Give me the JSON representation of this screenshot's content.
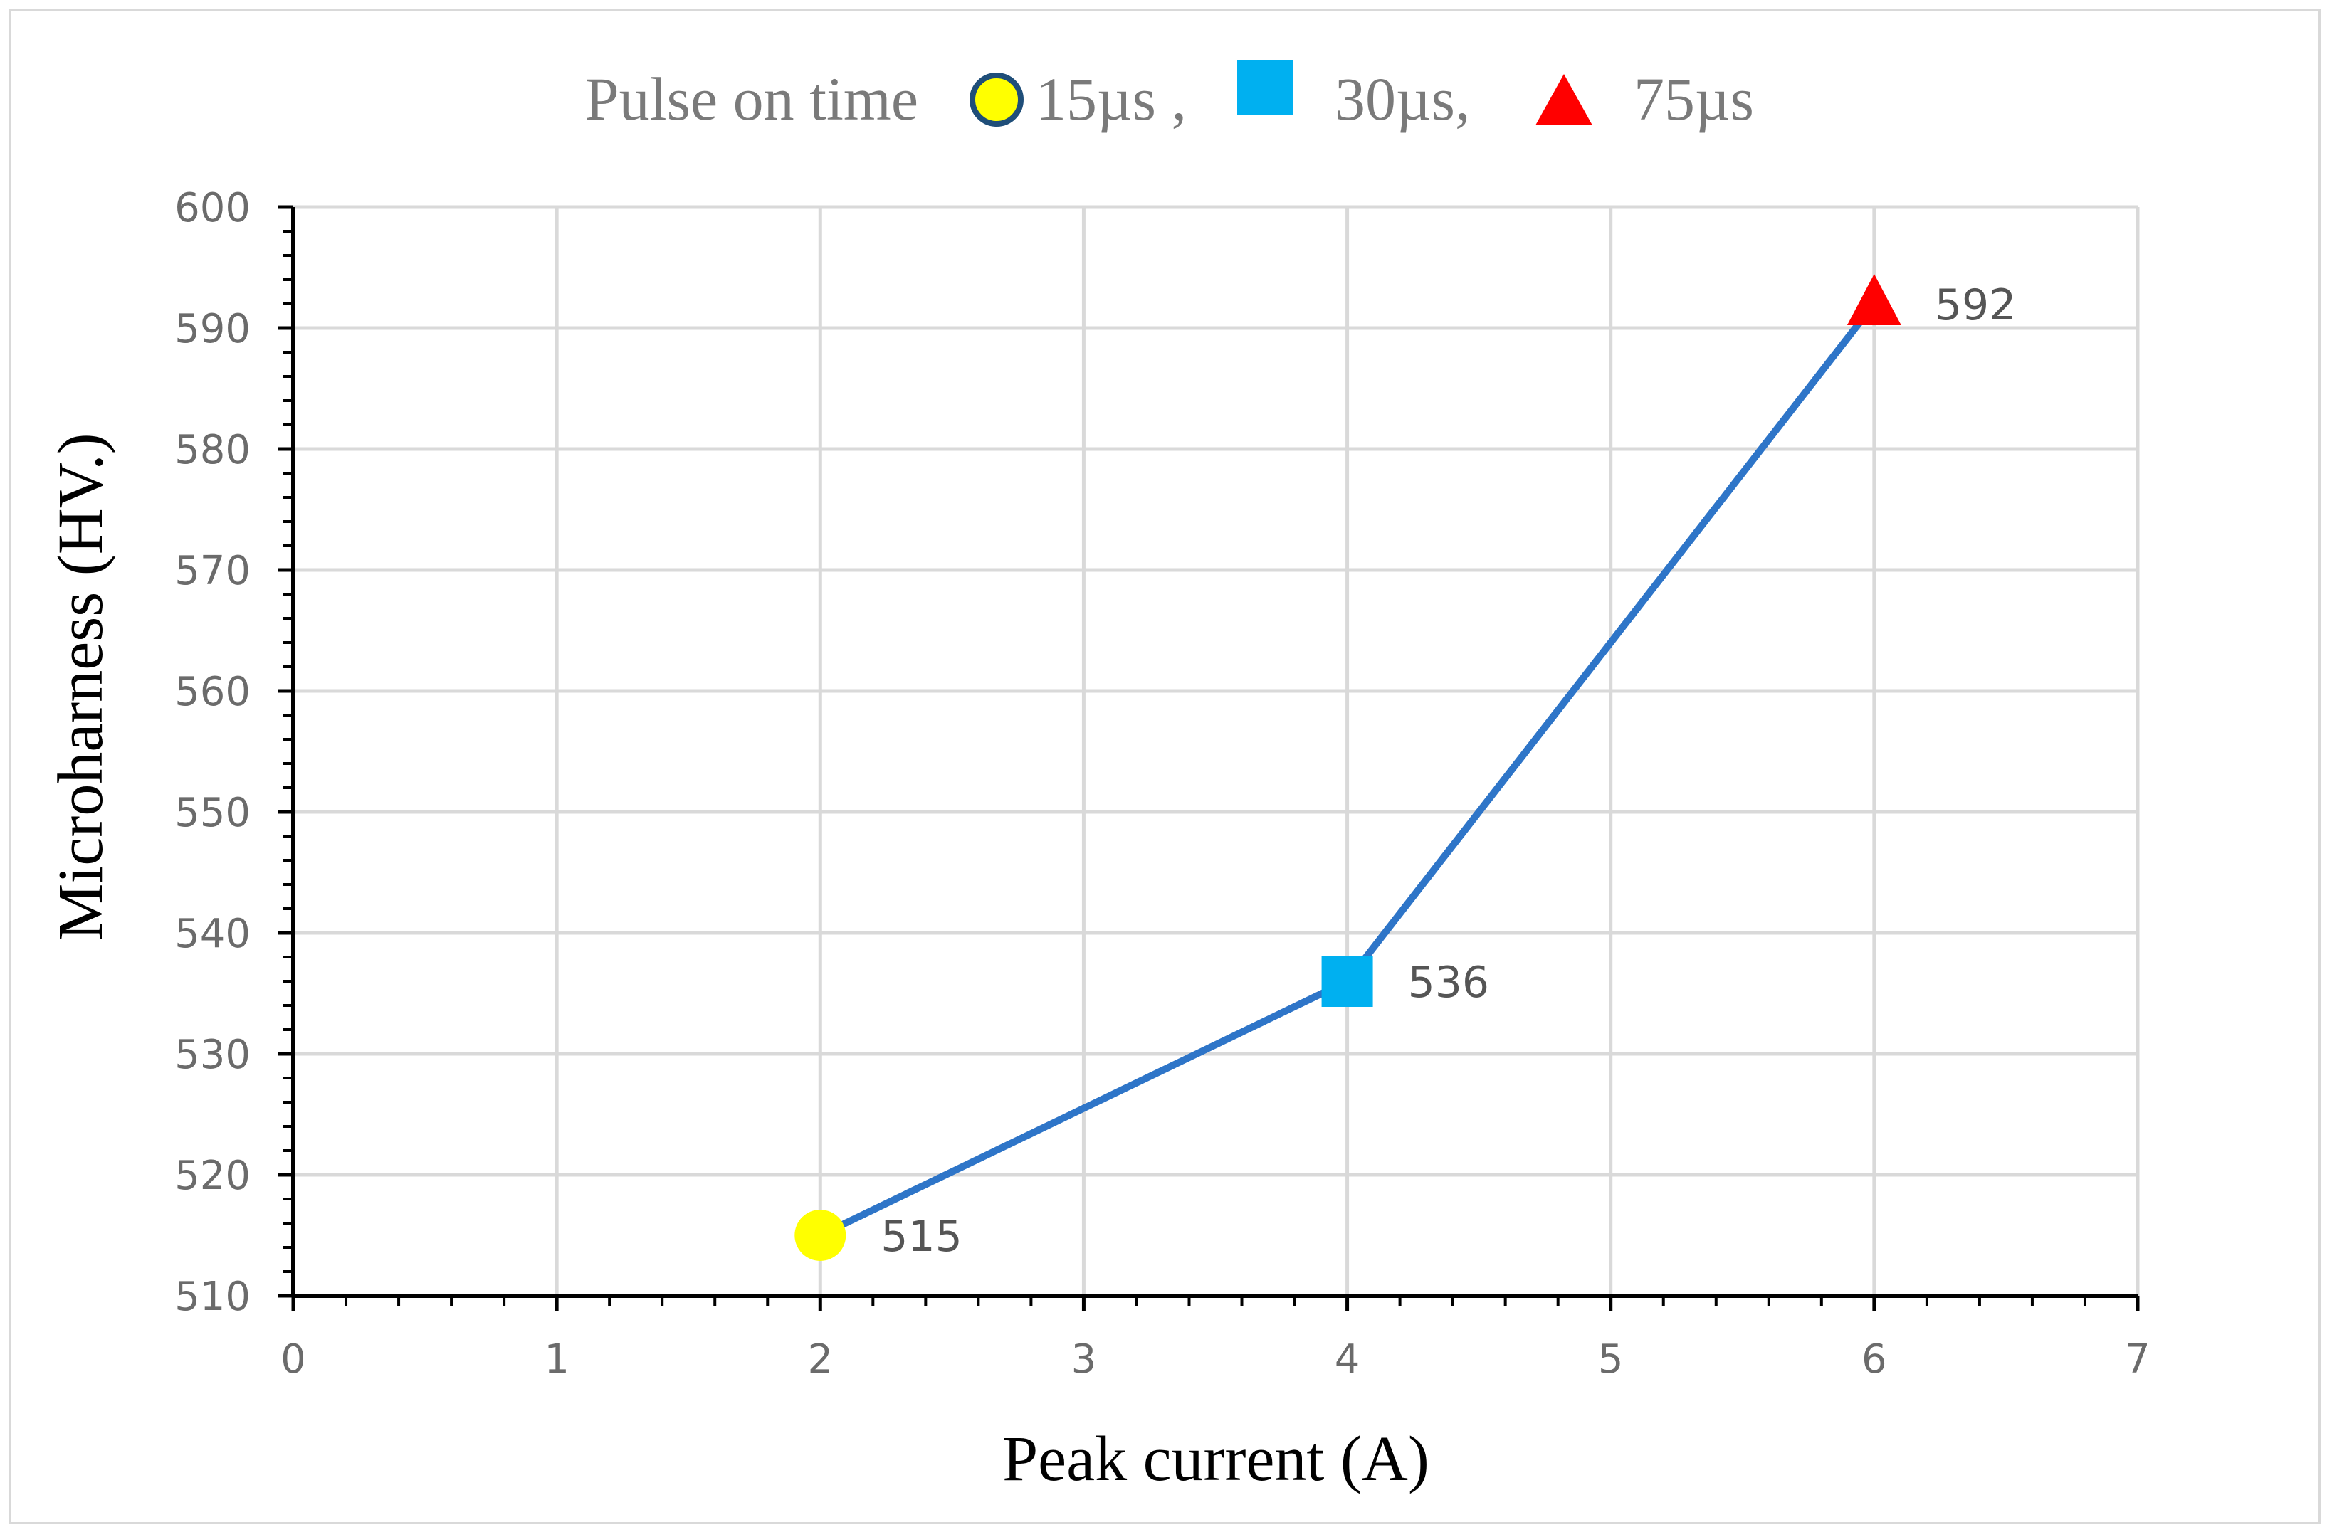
{
  "chart_data": {
    "type": "line",
    "legend_title": "Pulse on time",
    "legend_placement": "top-center",
    "legend": [
      {
        "label": "15µs ,",
        "marker": "circle",
        "color": "#ffff00",
        "stroke": "#1f4e79"
      },
      {
        "label": "30µs,",
        "marker": "square",
        "color": "#00b0f0"
      },
      {
        "label": "75µs",
        "marker": "triangle",
        "color": "#ff0000"
      }
    ],
    "xlabel": "Peak current (A)",
    "ylabel": "Microharness (HV.)",
    "xlim": [
      0,
      7
    ],
    "ylim": [
      510,
      600
    ],
    "x_ticks": [
      "0",
      "1",
      "2",
      "3",
      "4",
      "5",
      "6",
      "7"
    ],
    "y_ticks": [
      "510",
      "520",
      "530",
      "540",
      "550",
      "560",
      "570",
      "580",
      "590",
      "600"
    ],
    "grid": true,
    "line_color": "#2e75c8",
    "points": [
      {
        "x": 2,
        "y": 515,
        "label": "515",
        "marker": "circle",
        "color": "#ffff00"
      },
      {
        "x": 4,
        "y": 536,
        "label": "536",
        "marker": "square",
        "color": "#00b0f0"
      },
      {
        "x": 6,
        "y": 592,
        "label": "592",
        "marker": "triangle",
        "color": "#ff0000"
      }
    ]
  }
}
